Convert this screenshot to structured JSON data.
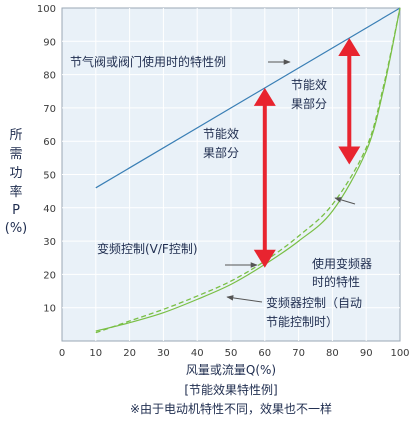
{
  "chart_data": {
    "type": "line",
    "title": "",
    "xlabel": "风量或流量Q(%)",
    "ylabel_lines": [
      "所",
      "需",
      "功",
      "率",
      "P",
      "(%)"
    ],
    "xlim": [
      0,
      100
    ],
    "ylim": [
      0,
      100
    ],
    "x_ticks": [
      "0",
      "10",
      "20",
      "30",
      "40",
      "50",
      "60",
      "70",
      "80",
      "90",
      "100"
    ],
    "y_ticks": [
      "10",
      "20",
      "30",
      "40",
      "50",
      "60",
      "70",
      "80",
      "90",
      "100"
    ],
    "grid": true,
    "series": [
      {
        "key": "damper",
        "color": "#3a7fb5",
        "style": "solid",
        "x": [
          10,
          100
        ],
        "y": [
          46,
          100
        ]
      },
      {
        "key": "vf",
        "color": "#79bf45",
        "style": "solid",
        "x": [
          10,
          20,
          30,
          40,
          50,
          60,
          70,
          80,
          90,
          95,
          100
        ],
        "y": [
          3,
          5.5,
          8.5,
          12.5,
          17,
          23,
          30,
          39,
          57,
          75,
          100
        ]
      },
      {
        "key": "energy_save",
        "color": "#79bf45",
        "style": "dashed",
        "x": [
          10,
          20,
          30,
          40,
          50,
          60,
          70,
          80,
          90,
          95,
          100
        ],
        "y": [
          2.5,
          6,
          9.5,
          13.5,
          18,
          24,
          31.5,
          41,
          58,
          76,
          100
        ]
      }
    ],
    "annotations": {
      "damper_label": "节气阀或阀门使用时的特性例",
      "saving_right": [
        "节能效",
        "果部分"
      ],
      "saving_left": [
        "节能效",
        "果部分"
      ],
      "vf_label": "变频控制(V/F控制)",
      "inverter_lines": [
        "使用变频器",
        "时的特性"
      ],
      "auto_lines": [
        "变频器控制（自动",
        "节能控制时）"
      ]
    },
    "savings_arrows": [
      {
        "x": 60,
        "y1": 22,
        "y2": 76
      },
      {
        "x": 85,
        "y1": 53,
        "y2": 91
      }
    ],
    "arrow_color": "#e8242f"
  },
  "caption": {
    "line1": "[节能效果特性例]",
    "line2": "※由于电动机特性不同，效果也不一样"
  }
}
